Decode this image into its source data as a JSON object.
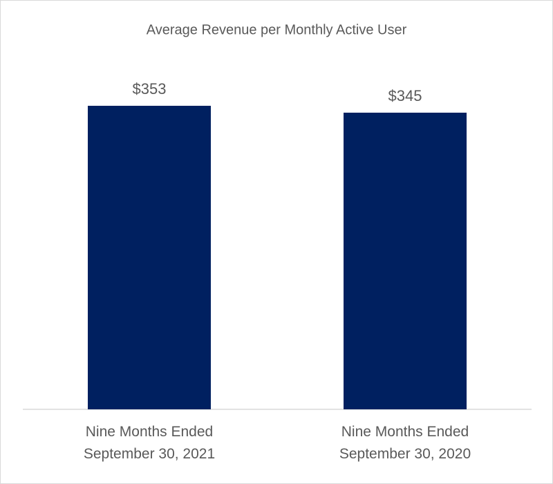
{
  "chart_data": {
    "type": "bar",
    "title": "Average Revenue per Monthly Active User",
    "categories": [
      "Nine Months Ended September 30, 2021",
      "Nine Months Ended September 30, 2020"
    ],
    "values": [
      353,
      345
    ],
    "value_labels": [
      "$353",
      "$345"
    ],
    "color": "#002060"
  }
}
